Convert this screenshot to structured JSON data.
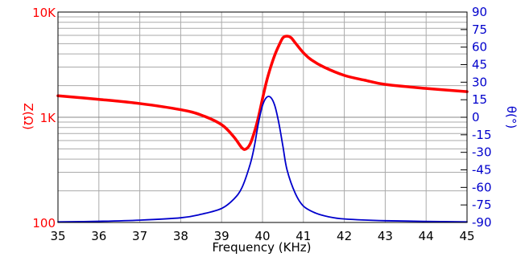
{
  "chart_data": {
    "type": "line",
    "xlabel": "Frequency (KHz)",
    "ylabel_left": "Z(Ω)",
    "ylabel_right": "θ(°)",
    "x_ticks": [
      "35",
      "36",
      "37",
      "38",
      "39",
      "40",
      "41",
      "42",
      "43",
      "44",
      "45"
    ],
    "y_left_ticks": [
      {
        "value": 100,
        "label": "100"
      },
      {
        "value": 1000,
        "label": "1K"
      },
      {
        "value": 10000,
        "label": "10K"
      }
    ],
    "y_right_ticks": [
      "90",
      "75",
      "60",
      "45",
      "30",
      "15",
      "0",
      "-15",
      "-30",
      "-45",
      "-60",
      "-75",
      "-90"
    ],
    "xlim": [
      35,
      45
    ],
    "ylim_left": [
      100,
      10000
    ],
    "ylim_right": [
      -90,
      90
    ],
    "y_left_scale": "log",
    "grid": true,
    "colors": {
      "impedance": "#ff0000",
      "phase": "#0000cc",
      "grid": "#aaaaaa",
      "axis": "#000000"
    },
    "series": [
      {
        "axis": "left",
        "x": [
          35,
          36,
          37,
          38,
          38.5,
          39,
          39.3,
          39.5,
          39.6,
          39.7,
          39.8,
          39.9,
          40,
          40.1,
          40.2,
          40.3,
          40.4,
          40.5,
          40.6,
          40.7,
          40.8,
          41,
          41.2,
          41.5,
          42,
          42.5,
          43,
          44,
          45
        ],
        "y": [
          1600,
          1480,
          1350,
          1180,
          1050,
          850,
          650,
          510,
          500,
          560,
          720,
          1000,
          1500,
          2200,
          3000,
          3900,
          4800,
          5700,
          5900,
          5700,
          5100,
          4100,
          3500,
          3000,
          2500,
          2250,
          2050,
          1880,
          1750
        ]
      },
      {
        "axis": "right",
        "x": [
          35,
          36,
          37,
          38,
          38.5,
          39,
          39.3,
          39.5,
          39.7,
          39.8,
          39.9,
          40,
          40.1,
          40.2,
          40.3,
          40.4,
          40.5,
          40.6,
          40.8,
          41,
          41.3,
          41.6,
          42,
          43,
          45
        ],
        "y": [
          -89.5,
          -89,
          -88,
          -86,
          -83,
          -78,
          -70,
          -60,
          -40,
          -25,
          -5,
          10,
          17,
          17,
          10,
          -5,
          -25,
          -45,
          -65,
          -76,
          -82,
          -85,
          -87,
          -88.5,
          -89.5
        ]
      }
    ]
  }
}
